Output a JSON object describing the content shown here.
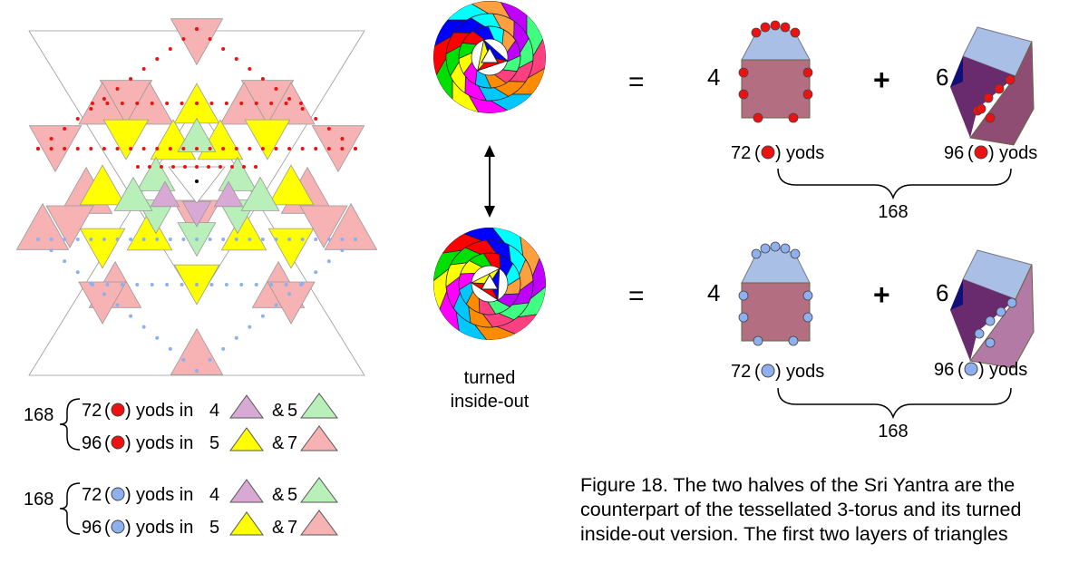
{
  "legend": {
    "groups": [
      {
        "total": "168",
        "dot_color": "#ee1111",
        "lines": [
          {
            "count": "72",
            "word": "yods in",
            "n1": "4",
            "t1": "#d9a9d6",
            "amp": "&",
            "n2": "5",
            "t2": "#b9f0b9"
          },
          {
            "count": "96",
            "word": "yods in",
            "n1": "5",
            "t1": "#ffff00",
            "amp": "&",
            "n2": "7",
            "t2": "#f7b3b3"
          }
        ]
      },
      {
        "total": "168",
        "dot_color": "#8fb0ee",
        "lines": [
          {
            "count": "72",
            "word": "yods in",
            "n1": "4",
            "t1": "#d9a9d6",
            "amp": "&",
            "n2": "5",
            "t2": "#b9f0b9"
          },
          {
            "count": "96",
            "word": "yods in",
            "n1": "5",
            "t1": "#ffff00",
            "amp": "&",
            "n2": "7",
            "t2": "#f7b3b3"
          }
        ]
      }
    ]
  },
  "torus": {
    "inside_out_label": [
      "turned",
      "inside-out"
    ]
  },
  "equations": [
    {
      "eq": "=",
      "n_left": "4",
      "plus": "+",
      "n_right": "6",
      "dot_color": "#ee1111",
      "left_label": {
        "count": "72",
        "word": "yods"
      },
      "right_label": {
        "count": "96",
        "word": "yods"
      },
      "total": "168"
    },
    {
      "eq": "=",
      "n_left": "4",
      "plus": "+",
      "n_right": "6",
      "dot_color": "#8fb0ee",
      "left_label": {
        "count": "72",
        "word": "yods"
      },
      "right_label": {
        "count": "96",
        "word": "yods"
      },
      "total": "168"
    }
  ],
  "colors": {
    "pink": "#f7b3b3",
    "yellow": "#ffff00",
    "green": "#b9f0b9",
    "lilac": "#d9a9d6",
    "red_dot": "#ee1111",
    "blue_dot": "#8fb0ee",
    "prism_face": "#b46e82",
    "prism_top": "#a9bfe6"
  },
  "caption": "Figure 18. The two halves of the Sri Yantra are the counterpart of the tessellated 3-torus and its turned inside-out version. The first two layers of triangles"
}
